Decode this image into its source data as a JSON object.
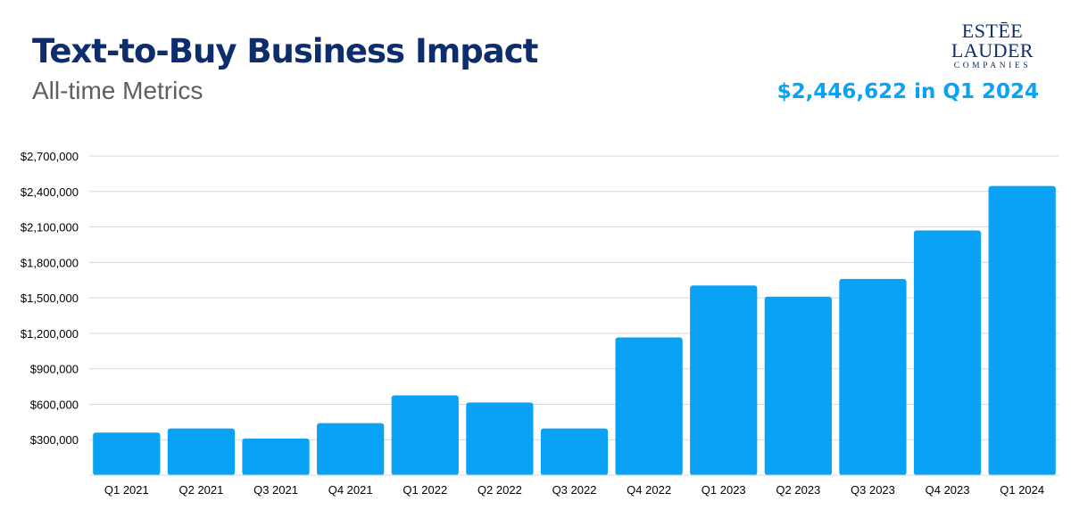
{
  "header": {
    "title": "Text-to-Buy Business Impact",
    "subtitle": "All-time Metrics",
    "highlight": "$2,446,622 in Q1 2024"
  },
  "logo": {
    "line1": "ESTĒE",
    "line2": "LAUDER",
    "line3": "COMPANIES"
  },
  "colors": {
    "bar": "#0aa2f5",
    "title": "#0d2d6c",
    "highlight": "#0aa2f5",
    "gridline": "#d9d9d9"
  },
  "chart_data": {
    "type": "bar",
    "categories": [
      "Q1 2021",
      "Q2 2021",
      "Q3 2021",
      "Q4 2021",
      "Q1 2022",
      "Q2 2022",
      "Q3 2022",
      "Q4 2022",
      "Q1 2023",
      "Q2 2023",
      "Q3 2023",
      "Q4 2023",
      "Q1 2024"
    ],
    "values": [
      360000,
      395000,
      310000,
      440000,
      675000,
      615000,
      395000,
      1165000,
      1605000,
      1510000,
      1660000,
      2070000,
      2446622
    ],
    "yticks": [
      300000,
      600000,
      900000,
      1200000,
      1500000,
      1800000,
      2100000,
      2400000,
      2700000
    ],
    "ytick_labels": [
      "$300,000",
      "$600,000",
      "$900,000",
      "$1,200,000",
      "$1,500,000",
      "$1,800,000",
      "$2,100,000",
      "$2,400,000",
      "$2,700,000"
    ],
    "ylim": [
      0,
      2700000
    ],
    "grid": true,
    "legend": "none"
  }
}
